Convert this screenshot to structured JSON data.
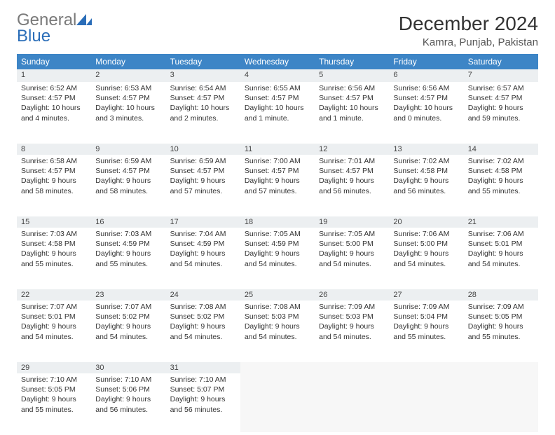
{
  "logo": {
    "word1": "General",
    "word2": "Blue"
  },
  "title": "December 2024",
  "location": "Kamra, Punjab, Pakistan",
  "colors": {
    "header_bg": "#3d85c6",
    "header_fg": "#ffffff",
    "daynum_bg": "#eceff1",
    "week_sep": "#2a6db8",
    "logo_gray": "#7a7a7a",
    "logo_blue": "#2a6db8",
    "empty_bg": "#f7f7f7"
  },
  "weekdays": [
    "Sunday",
    "Monday",
    "Tuesday",
    "Wednesday",
    "Thursday",
    "Friday",
    "Saturday"
  ],
  "weeks": [
    [
      {
        "n": "1",
        "sunrise": "6:52 AM",
        "sunset": "4:57 PM",
        "daylight": "10 hours and 4 minutes."
      },
      {
        "n": "2",
        "sunrise": "6:53 AM",
        "sunset": "4:57 PM",
        "daylight": "10 hours and 3 minutes."
      },
      {
        "n": "3",
        "sunrise": "6:54 AM",
        "sunset": "4:57 PM",
        "daylight": "10 hours and 2 minutes."
      },
      {
        "n": "4",
        "sunrise": "6:55 AM",
        "sunset": "4:57 PM",
        "daylight": "10 hours and 1 minute."
      },
      {
        "n": "5",
        "sunrise": "6:56 AM",
        "sunset": "4:57 PM",
        "daylight": "10 hours and 1 minute."
      },
      {
        "n": "6",
        "sunrise": "6:56 AM",
        "sunset": "4:57 PM",
        "daylight": "10 hours and 0 minutes."
      },
      {
        "n": "7",
        "sunrise": "6:57 AM",
        "sunset": "4:57 PM",
        "daylight": "9 hours and 59 minutes."
      }
    ],
    [
      {
        "n": "8",
        "sunrise": "6:58 AM",
        "sunset": "4:57 PM",
        "daylight": "9 hours and 58 minutes."
      },
      {
        "n": "9",
        "sunrise": "6:59 AM",
        "sunset": "4:57 PM",
        "daylight": "9 hours and 58 minutes."
      },
      {
        "n": "10",
        "sunrise": "6:59 AM",
        "sunset": "4:57 PM",
        "daylight": "9 hours and 57 minutes."
      },
      {
        "n": "11",
        "sunrise": "7:00 AM",
        "sunset": "4:57 PM",
        "daylight": "9 hours and 57 minutes."
      },
      {
        "n": "12",
        "sunrise": "7:01 AM",
        "sunset": "4:57 PM",
        "daylight": "9 hours and 56 minutes."
      },
      {
        "n": "13",
        "sunrise": "7:02 AM",
        "sunset": "4:58 PM",
        "daylight": "9 hours and 56 minutes."
      },
      {
        "n": "14",
        "sunrise": "7:02 AM",
        "sunset": "4:58 PM",
        "daylight": "9 hours and 55 minutes."
      }
    ],
    [
      {
        "n": "15",
        "sunrise": "7:03 AM",
        "sunset": "4:58 PM",
        "daylight": "9 hours and 55 minutes."
      },
      {
        "n": "16",
        "sunrise": "7:03 AM",
        "sunset": "4:59 PM",
        "daylight": "9 hours and 55 minutes."
      },
      {
        "n": "17",
        "sunrise": "7:04 AM",
        "sunset": "4:59 PM",
        "daylight": "9 hours and 54 minutes."
      },
      {
        "n": "18",
        "sunrise": "7:05 AM",
        "sunset": "4:59 PM",
        "daylight": "9 hours and 54 minutes."
      },
      {
        "n": "19",
        "sunrise": "7:05 AM",
        "sunset": "5:00 PM",
        "daylight": "9 hours and 54 minutes."
      },
      {
        "n": "20",
        "sunrise": "7:06 AM",
        "sunset": "5:00 PM",
        "daylight": "9 hours and 54 minutes."
      },
      {
        "n": "21",
        "sunrise": "7:06 AM",
        "sunset": "5:01 PM",
        "daylight": "9 hours and 54 minutes."
      }
    ],
    [
      {
        "n": "22",
        "sunrise": "7:07 AM",
        "sunset": "5:01 PM",
        "daylight": "9 hours and 54 minutes."
      },
      {
        "n": "23",
        "sunrise": "7:07 AM",
        "sunset": "5:02 PM",
        "daylight": "9 hours and 54 minutes."
      },
      {
        "n": "24",
        "sunrise": "7:08 AM",
        "sunset": "5:02 PM",
        "daylight": "9 hours and 54 minutes."
      },
      {
        "n": "25",
        "sunrise": "7:08 AM",
        "sunset": "5:03 PM",
        "daylight": "9 hours and 54 minutes."
      },
      {
        "n": "26",
        "sunrise": "7:09 AM",
        "sunset": "5:03 PM",
        "daylight": "9 hours and 54 minutes."
      },
      {
        "n": "27",
        "sunrise": "7:09 AM",
        "sunset": "5:04 PM",
        "daylight": "9 hours and 55 minutes."
      },
      {
        "n": "28",
        "sunrise": "7:09 AM",
        "sunset": "5:05 PM",
        "daylight": "9 hours and 55 minutes."
      }
    ],
    [
      {
        "n": "29",
        "sunrise": "7:10 AM",
        "sunset": "5:05 PM",
        "daylight": "9 hours and 55 minutes."
      },
      {
        "n": "30",
        "sunrise": "7:10 AM",
        "sunset": "5:06 PM",
        "daylight": "9 hours and 56 minutes."
      },
      {
        "n": "31",
        "sunrise": "7:10 AM",
        "sunset": "5:07 PM",
        "daylight": "9 hours and 56 minutes."
      },
      null,
      null,
      null,
      null
    ]
  ],
  "labels": {
    "sunrise": "Sunrise:",
    "sunset": "Sunset:",
    "daylight": "Daylight:"
  }
}
